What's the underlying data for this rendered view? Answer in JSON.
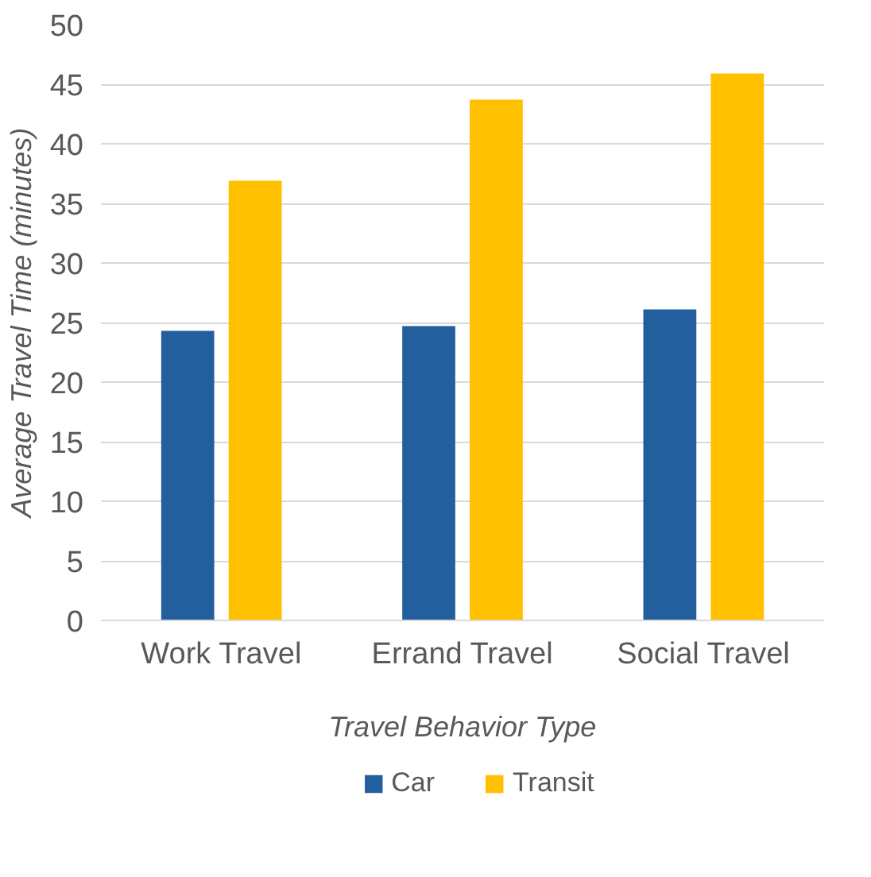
{
  "chart_data": {
    "type": "bar",
    "xlabel": "Travel Behavior Type",
    "ylabel": "Average Travel Time (minutes)",
    "categories": [
      "Work Travel",
      "Errand Travel",
      "Social Travel"
    ],
    "series": [
      {
        "name": "Car",
        "color": "#235f9c",
        "values": [
          24.3,
          24.7,
          26.1
        ]
      },
      {
        "name": "Transit",
        "color": "#ffc000",
        "values": [
          36.9,
          43.7,
          45.9
        ]
      }
    ],
    "ylim": [
      0,
      50
    ],
    "yticks": [
      0,
      5,
      10,
      15,
      20,
      25,
      30,
      35,
      40,
      45,
      50
    ],
    "grid": "y",
    "legend": "bottom"
  }
}
